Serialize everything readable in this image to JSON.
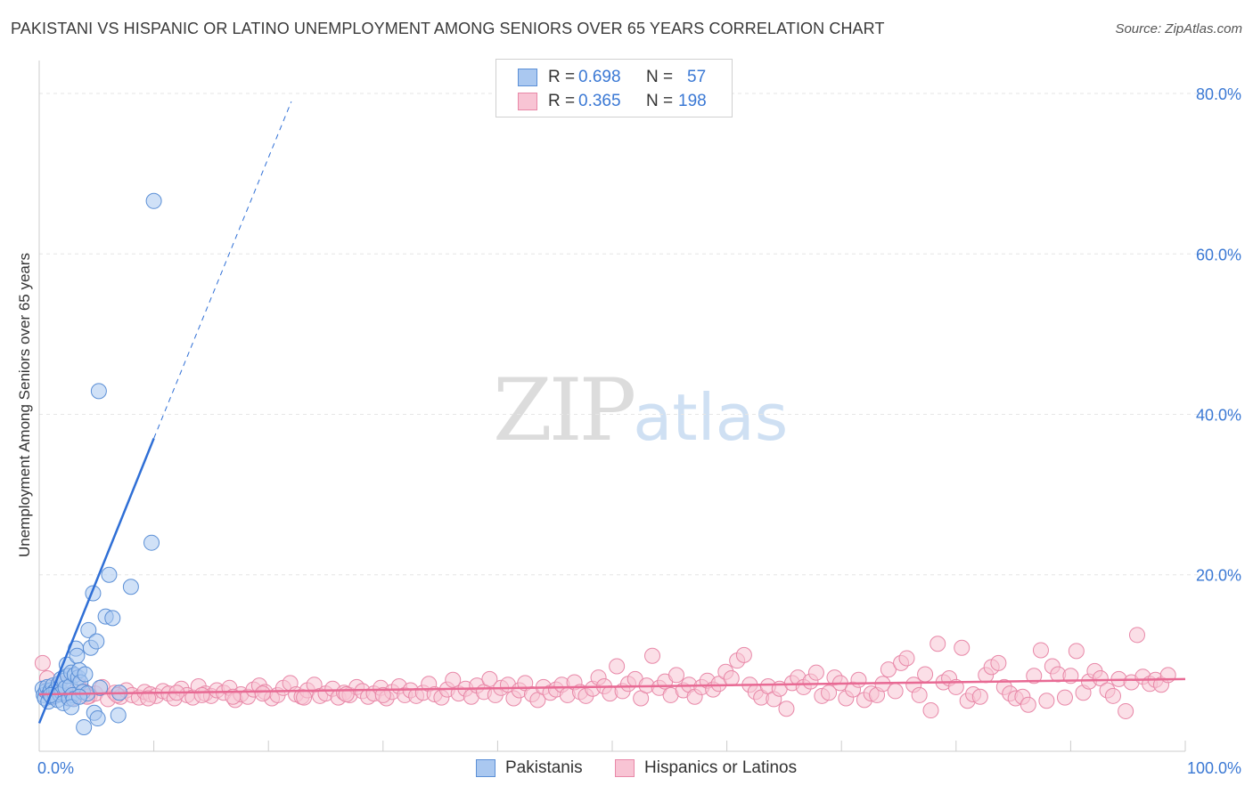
{
  "title": "PAKISTANI VS HISPANIC OR LATINO UNEMPLOYMENT AMONG SENIORS OVER 65 YEARS CORRELATION CHART",
  "source": "Source: ZipAtlas.com",
  "watermark": {
    "zip": "ZIP",
    "atlas": "atlas"
  },
  "legend": {
    "r_label": "R =",
    "n_label": "N =",
    "pakistani": {
      "r": "0.698",
      "n": "57"
    },
    "hispanic": {
      "r": "0.365",
      "n": "198"
    }
  },
  "bottom_legend": {
    "pakistani": "Pakistanis",
    "hispanic": "Hispanics or Latinos"
  },
  "colors": {
    "blue_fill": "#aac8f0",
    "blue_stroke": "#5b8fd6",
    "blue_line": "#2f6fd6",
    "pink_fill": "#f8c4d4",
    "pink_stroke": "#e888a8",
    "pink_line": "#e86a94",
    "tick_text": "#3a78d4",
    "grid": "#e6e6e6"
  },
  "chart_data": {
    "type": "scatter",
    "title": "PAKISTANI VS HISPANIC OR LATINO UNEMPLOYMENT AMONG SENIORS OVER 65 YEARS CORRELATION CHART",
    "xlabel": "",
    "ylabel": "Unemployment Among Seniors over 65 years",
    "xlim": [
      0,
      100
    ],
    "ylim": [
      -2,
      83
    ],
    "x_tick_labels": [
      "0.0%",
      "100.0%"
    ],
    "y_ticks": [
      20,
      40,
      60,
      80
    ],
    "y_tick_labels": [
      "20.0%",
      "40.0%",
      "60.0%",
      "80.0%"
    ],
    "series": [
      {
        "name": "Pakistanis",
        "r": 0.698,
        "n": 57,
        "trend": {
          "solid": [
            [
              0,
              1.5
            ],
            [
              10,
              37
            ]
          ],
          "dashed": [
            [
              10,
              37
            ],
            [
              22,
              79
            ]
          ]
        },
        "points": [
          [
            0.3,
            5.8
          ],
          [
            0.4,
            5.0
          ],
          [
            0.5,
            4.6
          ],
          [
            0.6,
            5.5
          ],
          [
            0.7,
            6.0
          ],
          [
            0.8,
            4.2
          ],
          [
            0.9,
            5.2
          ],
          [
            1.0,
            5.6
          ],
          [
            1.1,
            4.8
          ],
          [
            1.2,
            6.2
          ],
          [
            1.3,
            5.4
          ],
          [
            1.4,
            4.9
          ],
          [
            1.5,
            5.7
          ],
          [
            1.6,
            4.4
          ],
          [
            1.7,
            6.4
          ],
          [
            1.8,
            5.1
          ],
          [
            1.9,
            7.0
          ],
          [
            2.0,
            5.3
          ],
          [
            2.1,
            4.0
          ],
          [
            2.2,
            6.8
          ],
          [
            2.3,
            5.9
          ],
          [
            2.4,
            8.8
          ],
          [
            2.5,
            7.4
          ],
          [
            2.6,
            4.6
          ],
          [
            2.7,
            6.1
          ],
          [
            2.8,
            7.8
          ],
          [
            2.9,
            5.0
          ],
          [
            3.0,
            4.5
          ],
          [
            3.1,
            7.5
          ],
          [
            3.2,
            10.8
          ],
          [
            3.3,
            9.9
          ],
          [
            3.4,
            7.2
          ],
          [
            3.5,
            8.1
          ],
          [
            3.6,
            6.6
          ],
          [
            3.8,
            5.4
          ],
          [
            4.0,
            7.6
          ],
          [
            4.2,
            5.2
          ],
          [
            2.8,
            3.5
          ],
          [
            3.5,
            4.8
          ],
          [
            4.3,
            13.1
          ],
          [
            4.5,
            10.9
          ],
          [
            4.7,
            17.7
          ],
          [
            5.0,
            11.7
          ],
          [
            4.8,
            2.8
          ],
          [
            5.1,
            2.1
          ],
          [
            3.9,
            1.0
          ],
          [
            5.3,
            5.9
          ],
          [
            5.8,
            14.8
          ],
          [
            6.1,
            20.0
          ],
          [
            6.4,
            14.6
          ],
          [
            6.9,
            2.5
          ],
          [
            7.0,
            5.3
          ],
          [
            8.0,
            18.5
          ],
          [
            5.2,
            42.9
          ],
          [
            9.8,
            24.0
          ],
          [
            10.0,
            66.6
          ],
          [
            1.0,
            5.0
          ]
        ]
      },
      {
        "name": "Hispanics or Latinos",
        "r": 0.365,
        "n": 198,
        "trend": {
          "solid": [
            [
              0,
              5.1
            ],
            [
              100,
              7.0
            ]
          ]
        },
        "points": [
          [
            0.3,
            9.0
          ],
          [
            0.7,
            7.1
          ],
          [
            1.2,
            4.8
          ],
          [
            1.8,
            6.5
          ],
          [
            2.3,
            5.1
          ],
          [
            2.9,
            4.6
          ],
          [
            3.4,
            6.3
          ],
          [
            3.9,
            5.5
          ],
          [
            4.4,
            4.9
          ],
          [
            4.9,
            5.2
          ],
          [
            5.5,
            6.0
          ],
          [
            6.0,
            4.5
          ],
          [
            6.6,
            5.3
          ],
          [
            7.1,
            4.8
          ],
          [
            7.6,
            5.6
          ],
          [
            8.1,
            5.0
          ],
          [
            8.7,
            4.7
          ],
          [
            9.2,
            5.4
          ],
          [
            9.7,
            5.1
          ],
          [
            10.2,
            4.9
          ],
          [
            10.8,
            5.5
          ],
          [
            11.3,
            5.2
          ],
          [
            11.8,
            4.6
          ],
          [
            12.4,
            5.8
          ],
          [
            12.9,
            5.0
          ],
          [
            13.4,
            4.7
          ],
          [
            13.9,
            6.1
          ],
          [
            14.5,
            5.2
          ],
          [
            15.0,
            4.9
          ],
          [
            15.5,
            5.6
          ],
          [
            16.1,
            5.3
          ],
          [
            16.6,
            5.9
          ],
          [
            17.1,
            4.4
          ],
          [
            17.6,
            5.1
          ],
          [
            18.2,
            4.8
          ],
          [
            18.7,
            5.7
          ],
          [
            19.2,
            6.2
          ],
          [
            19.7,
            5.4
          ],
          [
            20.3,
            4.6
          ],
          [
            20.8,
            5.0
          ],
          [
            21.3,
            5.9
          ],
          [
            21.9,
            6.5
          ],
          [
            22.4,
            5.1
          ],
          [
            22.9,
            4.8
          ],
          [
            23.4,
            5.6
          ],
          [
            24.0,
            6.3
          ],
          [
            24.5,
            4.9
          ],
          [
            25.0,
            5.2
          ],
          [
            25.6,
            5.8
          ],
          [
            26.1,
            4.7
          ],
          [
            26.6,
            5.3
          ],
          [
            27.1,
            5.0
          ],
          [
            27.7,
            6.0
          ],
          [
            28.2,
            5.5
          ],
          [
            28.7,
            4.8
          ],
          [
            29.2,
            5.2
          ],
          [
            29.8,
            5.9
          ],
          [
            30.3,
            4.6
          ],
          [
            30.8,
            5.4
          ],
          [
            31.4,
            6.1
          ],
          [
            31.9,
            5.0
          ],
          [
            32.4,
            5.6
          ],
          [
            32.9,
            4.9
          ],
          [
            33.5,
            5.3
          ],
          [
            34.0,
            6.4
          ],
          [
            34.5,
            5.1
          ],
          [
            35.1,
            4.7
          ],
          [
            35.6,
            5.7
          ],
          [
            36.1,
            6.9
          ],
          [
            36.6,
            5.2
          ],
          [
            37.2,
            5.8
          ],
          [
            37.7,
            4.8
          ],
          [
            38.2,
            6.2
          ],
          [
            38.8,
            5.4
          ],
          [
            39.3,
            7.0
          ],
          [
            39.8,
            5.0
          ],
          [
            40.3,
            5.9
          ],
          [
            40.9,
            6.3
          ],
          [
            41.4,
            4.6
          ],
          [
            41.9,
            5.6
          ],
          [
            42.4,
            6.5
          ],
          [
            43.0,
            5.1
          ],
          [
            43.5,
            4.4
          ],
          [
            44.0,
            6.0
          ],
          [
            44.6,
            5.3
          ],
          [
            45.1,
            5.7
          ],
          [
            45.6,
            6.3
          ],
          [
            46.1,
            5.0
          ],
          [
            46.7,
            6.6
          ],
          [
            47.2,
            5.4
          ],
          [
            47.7,
            4.9
          ],
          [
            48.3,
            5.8
          ],
          [
            48.8,
            7.2
          ],
          [
            49.3,
            6.1
          ],
          [
            49.8,
            5.2
          ],
          [
            50.4,
            8.6
          ],
          [
            50.9,
            5.5
          ],
          [
            51.4,
            6.4
          ],
          [
            52.0,
            7.0
          ],
          [
            52.5,
            4.6
          ],
          [
            53.0,
            6.2
          ],
          [
            53.5,
            9.9
          ],
          [
            54.1,
            5.9
          ],
          [
            54.6,
            6.7
          ],
          [
            55.1,
            5.0
          ],
          [
            55.6,
            7.5
          ],
          [
            56.2,
            5.6
          ],
          [
            56.7,
            6.3
          ],
          [
            57.2,
            4.8
          ],
          [
            57.8,
            6.0
          ],
          [
            58.3,
            6.8
          ],
          [
            58.8,
            5.7
          ],
          [
            59.3,
            6.4
          ],
          [
            59.9,
            7.9
          ],
          [
            60.4,
            7.1
          ],
          [
            60.9,
            9.3
          ],
          [
            61.5,
            10.0
          ],
          [
            62.0,
            6.3
          ],
          [
            62.5,
            5.4
          ],
          [
            63.0,
            4.7
          ],
          [
            63.6,
            6.1
          ],
          [
            64.1,
            4.5
          ],
          [
            64.6,
            5.8
          ],
          [
            65.2,
            3.3
          ],
          [
            65.7,
            6.5
          ],
          [
            66.2,
            7.2
          ],
          [
            66.7,
            6.0
          ],
          [
            67.3,
            6.7
          ],
          [
            67.8,
            7.8
          ],
          [
            68.3,
            4.9
          ],
          [
            68.9,
            5.3
          ],
          [
            69.4,
            7.2
          ],
          [
            69.9,
            6.5
          ],
          [
            70.4,
            4.6
          ],
          [
            71.0,
            5.7
          ],
          [
            71.5,
            6.9
          ],
          [
            72.0,
            4.4
          ],
          [
            72.6,
            5.2
          ],
          [
            73.1,
            5.0
          ],
          [
            73.6,
            6.4
          ],
          [
            74.1,
            8.2
          ],
          [
            74.7,
            5.5
          ],
          [
            75.2,
            9.0
          ],
          [
            75.7,
            9.6
          ],
          [
            76.3,
            6.3
          ],
          [
            76.8,
            5.0
          ],
          [
            77.3,
            7.6
          ],
          [
            77.8,
            3.1
          ],
          [
            78.4,
            11.4
          ],
          [
            78.9,
            6.6
          ],
          [
            79.4,
            7.1
          ],
          [
            80.0,
            6.0
          ],
          [
            80.5,
            10.9
          ],
          [
            81.0,
            4.3
          ],
          [
            81.5,
            5.1
          ],
          [
            82.1,
            4.8
          ],
          [
            82.6,
            7.5
          ],
          [
            83.1,
            8.5
          ],
          [
            83.7,
            9.0
          ],
          [
            84.2,
            6.0
          ],
          [
            84.7,
            5.2
          ],
          [
            85.2,
            4.6
          ],
          [
            85.8,
            4.8
          ],
          [
            86.3,
            3.8
          ],
          [
            86.8,
            7.4
          ],
          [
            87.4,
            10.6
          ],
          [
            87.9,
            4.3
          ],
          [
            88.4,
            8.6
          ],
          [
            88.9,
            7.6
          ],
          [
            89.5,
            4.7
          ],
          [
            90.0,
            7.4
          ],
          [
            90.5,
            10.5
          ],
          [
            91.1,
            5.3
          ],
          [
            91.6,
            6.7
          ],
          [
            92.1,
            8.0
          ],
          [
            92.6,
            7.1
          ],
          [
            93.2,
            5.6
          ],
          [
            93.7,
            4.9
          ],
          [
            94.2,
            7.0
          ],
          [
            94.8,
            3.0
          ],
          [
            95.3,
            6.6
          ],
          [
            95.8,
            12.5
          ],
          [
            96.3,
            7.3
          ],
          [
            96.9,
            6.4
          ],
          [
            97.4,
            6.9
          ],
          [
            97.9,
            6.3
          ],
          [
            98.5,
            7.5
          ],
          [
            1.5,
            5.0
          ],
          [
            4.2,
            4.8
          ],
          [
            6.8,
            5.0
          ],
          [
            9.5,
            4.6
          ],
          [
            12.0,
            5.3
          ],
          [
            14.2,
            5.0
          ],
          [
            16.9,
            4.8
          ],
          [
            19.5,
            5.2
          ],
          [
            23.1,
            4.7
          ],
          [
            26.8,
            5.1
          ],
          [
            30.0,
            5.0
          ]
        ]
      }
    ]
  },
  "axis": {
    "x_min_label": "0.0%",
    "x_max_label": "100.0%"
  }
}
